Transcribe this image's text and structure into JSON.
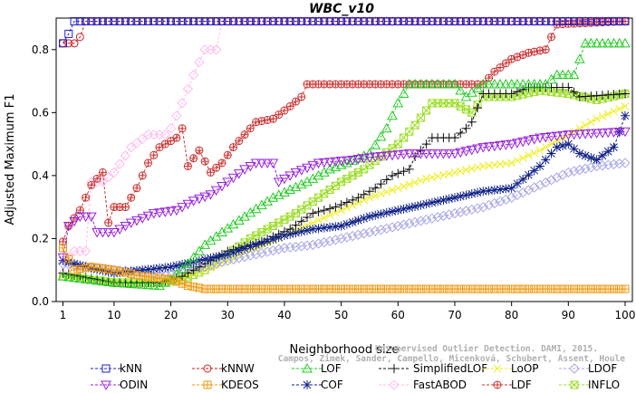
{
  "chart_data": {
    "type": "line",
    "title": "WBC_v10",
    "xlabel": "Neighborhood size",
    "ylabel": "Adjusted Maximum F1",
    "xlim": [
      0,
      100
    ],
    "ylim": [
      0,
      0.9
    ],
    "xticks": [
      1,
      10,
      20,
      30,
      40,
      50,
      60,
      70,
      80,
      90,
      100
    ],
    "yticks": [
      0.0,
      0.2,
      0.4,
      0.6,
      0.8
    ],
    "ytick_labels": [
      "0.0",
      "0.2",
      "0.4",
      "0.6",
      "0.8"
    ],
    "grid": false,
    "legend_position": "bottom",
    "series": [
      {
        "name": "kNN",
        "color": "#2222cc",
        "marker": "square",
        "points": [
          [
            1,
            0.82
          ],
          [
            2,
            0.85
          ],
          [
            3,
            0.89
          ],
          [
            100,
            0.89
          ]
        ]
      },
      {
        "name": "kNNW",
        "color": "#cc2222",
        "marker": "circle",
        "points": [
          [
            1,
            0.82
          ],
          [
            3,
            0.82
          ],
          [
            4,
            0.84
          ],
          [
            5,
            0.89
          ],
          [
            100,
            0.89
          ]
        ]
      },
      {
        "name": "LOF",
        "color": "#22cc22",
        "marker": "triangle-up",
        "points": [
          [
            1,
            0.08
          ],
          [
            10,
            0.06
          ],
          [
            18,
            0.05
          ],
          [
            20,
            0.07
          ],
          [
            23,
            0.12
          ],
          [
            26,
            0.18
          ],
          [
            29,
            0.22
          ],
          [
            33,
            0.27
          ],
          [
            38,
            0.33
          ],
          [
            44,
            0.38
          ],
          [
            48,
            0.42
          ],
          [
            51,
            0.44
          ],
          [
            55,
            0.47
          ],
          [
            58,
            0.55
          ],
          [
            60,
            0.63
          ],
          [
            62,
            0.69
          ],
          [
            70,
            0.69
          ],
          [
            72,
            0.65
          ],
          [
            75,
            0.69
          ],
          [
            86,
            0.69
          ],
          [
            88,
            0.72
          ],
          [
            91,
            0.72
          ],
          [
            93,
            0.82
          ],
          [
            100,
            0.82
          ]
        ]
      },
      {
        "name": "SimplifiedLOF",
        "color": "#111111",
        "marker": "plus",
        "points": [
          [
            1,
            0.09
          ],
          [
            10,
            0.06
          ],
          [
            18,
            0.06
          ],
          [
            22,
            0.08
          ],
          [
            26,
            0.12
          ],
          [
            30,
            0.16
          ],
          [
            36,
            0.19
          ],
          [
            41,
            0.23
          ],
          [
            45,
            0.28
          ],
          [
            49,
            0.3
          ],
          [
            53,
            0.33
          ],
          [
            56,
            0.36
          ],
          [
            59,
            0.4
          ],
          [
            62,
            0.42
          ],
          [
            63,
            0.46
          ],
          [
            66,
            0.52
          ],
          [
            70,
            0.52
          ],
          [
            72,
            0.55
          ],
          [
            73,
            0.57
          ],
          [
            75,
            0.66
          ],
          [
            80,
            0.66
          ],
          [
            83,
            0.68
          ],
          [
            90,
            0.68
          ],
          [
            92,
            0.65
          ],
          [
            100,
            0.66
          ]
        ]
      },
      {
        "name": "LoOP",
        "color": "#eeee22",
        "marker": "cross",
        "points": [
          [
            1,
            0.08
          ],
          [
            10,
            0.06
          ],
          [
            18,
            0.06
          ],
          [
            22,
            0.08
          ],
          [
            26,
            0.1
          ],
          [
            30,
            0.13
          ],
          [
            35,
            0.17
          ],
          [
            40,
            0.21
          ],
          [
            45,
            0.25
          ],
          [
            50,
            0.29
          ],
          [
            55,
            0.33
          ],
          [
            60,
            0.36
          ],
          [
            65,
            0.39
          ],
          [
            70,
            0.41
          ],
          [
            75,
            0.43
          ],
          [
            80,
            0.44
          ],
          [
            85,
            0.48
          ],
          [
            90,
            0.53
          ],
          [
            95,
            0.58
          ],
          [
            100,
            0.62
          ]
        ]
      },
      {
        "name": "LDOF",
        "color": "#a8a8e8",
        "marker": "diamond",
        "points": [
          [
            1,
            0.12
          ],
          [
            10,
            0.1
          ],
          [
            18,
            0.09
          ],
          [
            22,
            0.1
          ],
          [
            26,
            0.11
          ],
          [
            30,
            0.13
          ],
          [
            35,
            0.15
          ],
          [
            40,
            0.17
          ],
          [
            45,
            0.18
          ],
          [
            50,
            0.2
          ],
          [
            55,
            0.22
          ],
          [
            60,
            0.24
          ],
          [
            65,
            0.26
          ],
          [
            70,
            0.28
          ],
          [
            75,
            0.3
          ],
          [
            80,
            0.33
          ],
          [
            85,
            0.37
          ],
          [
            90,
            0.41
          ],
          [
            95,
            0.43
          ],
          [
            100,
            0.44
          ]
        ]
      },
      {
        "name": "ODIN",
        "color": "#9922dd",
        "marker": "triangle-down",
        "points": [
          [
            1,
            0.14
          ],
          [
            2,
            0.24
          ],
          [
            4,
            0.27
          ],
          [
            6,
            0.27
          ],
          [
            7,
            0.22
          ],
          [
            10,
            0.22
          ],
          [
            13,
            0.25
          ],
          [
            17,
            0.28
          ],
          [
            21,
            0.29
          ],
          [
            24,
            0.32
          ],
          [
            27,
            0.34
          ],
          [
            30,
            0.38
          ],
          [
            33,
            0.42
          ],
          [
            35,
            0.44
          ],
          [
            38,
            0.44
          ],
          [
            39,
            0.38
          ],
          [
            42,
            0.41
          ],
          [
            46,
            0.44
          ],
          [
            52,
            0.45
          ],
          [
            56,
            0.46
          ],
          [
            62,
            0.47
          ],
          [
            70,
            0.47
          ],
          [
            75,
            0.49
          ],
          [
            80,
            0.5
          ],
          [
            85,
            0.52
          ],
          [
            90,
            0.53
          ],
          [
            100,
            0.54
          ]
        ]
      },
      {
        "name": "KDEOS",
        "color": "#ee9911",
        "marker": "square-cross",
        "points": [
          [
            1,
            0.17
          ],
          [
            3,
            0.1
          ],
          [
            6,
            0.11
          ],
          [
            10,
            0.1
          ],
          [
            15,
            0.08
          ],
          [
            20,
            0.07
          ],
          [
            23,
            0.05
          ],
          [
            26,
            0.04
          ],
          [
            100,
            0.04
          ]
        ]
      },
      {
        "name": "COF",
        "color": "#112288",
        "marker": "star",
        "points": [
          [
            1,
            0.13
          ],
          [
            5,
            0.11
          ],
          [
            10,
            0.09
          ],
          [
            15,
            0.1
          ],
          [
            20,
            0.11
          ],
          [
            25,
            0.13
          ],
          [
            30,
            0.15
          ],
          [
            35,
            0.18
          ],
          [
            40,
            0.21
          ],
          [
            45,
            0.23
          ],
          [
            50,
            0.24
          ],
          [
            55,
            0.27
          ],
          [
            60,
            0.29
          ],
          [
            65,
            0.31
          ],
          [
            70,
            0.33
          ],
          [
            75,
            0.35
          ],
          [
            80,
            0.36
          ],
          [
            85,
            0.43
          ],
          [
            88,
            0.49
          ],
          [
            90,
            0.5
          ],
          [
            92,
            0.47
          ],
          [
            95,
            0.45
          ],
          [
            98,
            0.49
          ],
          [
            100,
            0.59
          ]
        ]
      },
      {
        "name": "FastABOD",
        "color": "#ffbbee",
        "marker": "diamond",
        "points": [
          [
            1,
            0.09
          ],
          [
            2,
            0.14
          ],
          [
            3,
            0.16
          ],
          [
            5,
            0.16
          ],
          [
            6,
            0.38
          ],
          [
            8,
            0.38
          ],
          [
            10,
            0.41
          ],
          [
            13,
            0.49
          ],
          [
            16,
            0.53
          ],
          [
            19,
            0.53
          ],
          [
            20,
            0.55
          ],
          [
            22,
            0.63
          ],
          [
            24,
            0.72
          ],
          [
            26,
            0.8
          ],
          [
            28,
            0.8
          ],
          [
            29,
            0.89
          ],
          [
            100,
            0.89
          ]
        ]
      },
      {
        "name": "LDF",
        "color": "#cc3333",
        "marker": "circle-cross",
        "points": [
          [
            1,
            0.19
          ],
          [
            2,
            0.24
          ],
          [
            4,
            0.29
          ],
          [
            6,
            0.37
          ],
          [
            8,
            0.41
          ],
          [
            9,
            0.25
          ],
          [
            10,
            0.3
          ],
          [
            12,
            0.3
          ],
          [
            14,
            0.36
          ],
          [
            16,
            0.44
          ],
          [
            18,
            0.49
          ],
          [
            21,
            0.52
          ],
          [
            22,
            0.55
          ],
          [
            23,
            0.43
          ],
          [
            25,
            0.48
          ],
          [
            27,
            0.41
          ],
          [
            29,
            0.44
          ],
          [
            31,
            0.49
          ],
          [
            33,
            0.53
          ],
          [
            35,
            0.57
          ],
          [
            38,
            0.58
          ],
          [
            41,
            0.62
          ],
          [
            43,
            0.65
          ],
          [
            44,
            0.69
          ],
          [
            75,
            0.69
          ],
          [
            77,
            0.73
          ],
          [
            80,
            0.77
          ],
          [
            83,
            0.79
          ],
          [
            86,
            0.8
          ],
          [
            88,
            0.88
          ],
          [
            100,
            0.89
          ]
        ]
      },
      {
        "name": "INFLO",
        "color": "#99dd22",
        "marker": "square-x",
        "points": [
          [
            1,
            0.08
          ],
          [
            10,
            0.06
          ],
          [
            18,
            0.06
          ],
          [
            22,
            0.07
          ],
          [
            26,
            0.1
          ],
          [
            30,
            0.15
          ],
          [
            34,
            0.2
          ],
          [
            38,
            0.24
          ],
          [
            42,
            0.28
          ],
          [
            46,
            0.33
          ],
          [
            50,
            0.38
          ],
          [
            54,
            0.42
          ],
          [
            57,
            0.46
          ],
          [
            60,
            0.5
          ],
          [
            63,
            0.56
          ],
          [
            66,
            0.63
          ],
          [
            70,
            0.63
          ],
          [
            73,
            0.6
          ],
          [
            75,
            0.65
          ],
          [
            80,
            0.65
          ],
          [
            85,
            0.67
          ],
          [
            90,
            0.66
          ],
          [
            95,
            0.64
          ],
          [
            100,
            0.66
          ]
        ]
      }
    ]
  },
  "watermark": {
    "line1": "Unsupervised Outlier Detection. DAMI, 2015.",
    "line2": "Campos, Zimek, Sander, Campello, Micenková, Schubert, Assent, Houle"
  }
}
